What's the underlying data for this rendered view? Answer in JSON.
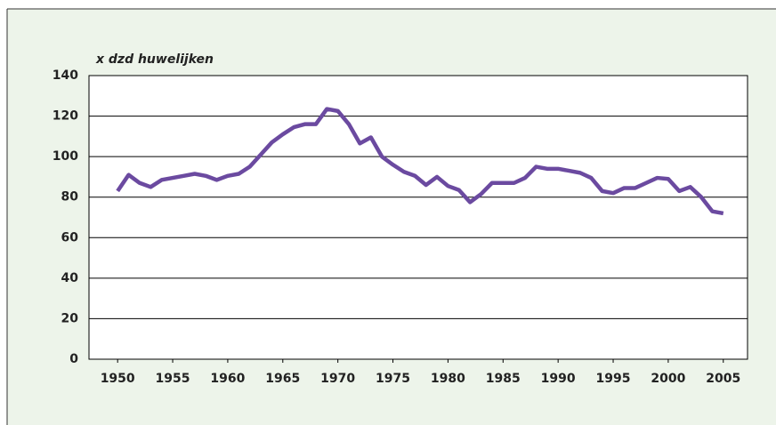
{
  "chart_data": {
    "type": "line",
    "y_label": "x dzd huwelijken",
    "x": [
      1950,
      1951,
      1952,
      1953,
      1954,
      1955,
      1956,
      1957,
      1958,
      1959,
      1960,
      1961,
      1962,
      1963,
      1964,
      1965,
      1966,
      1967,
      1968,
      1969,
      1970,
      1971,
      1972,
      1973,
      1974,
      1975,
      1976,
      1977,
      1978,
      1979,
      1980,
      1981,
      1982,
      1983,
      1984,
      1985,
      1986,
      1987,
      1988,
      1989,
      1990,
      1991,
      1992,
      1993,
      1994,
      1995,
      1996,
      1997,
      1998,
      1999,
      2000,
      2001,
      2002,
      2003,
      2004,
      2005
    ],
    "series": [
      {
        "color": "#6b4aa0",
        "values": [
          83,
          91,
          87,
          85,
          88.5,
          89.5,
          90.5,
          91.5,
          90.5,
          88.5,
          90.5,
          91.5,
          95,
          101,
          107,
          111,
          114.5,
          116,
          116,
          123.5,
          122.5,
          116,
          106.5,
          109.5,
          100,
          96,
          92.5,
          90.5,
          86,
          90,
          85.5,
          83.5,
          77.5,
          81.5,
          87,
          87,
          87,
          89.5,
          95,
          94,
          94,
          93,
          92,
          89.5,
          83,
          82,
          84.5,
          84.5,
          87,
          89.5,
          89,
          83,
          85,
          80,
          73,
          72
        ]
      }
    ],
    "xlim": [
      1947.4,
      2007.2
    ],
    "xticks": [
      1950,
      1955,
      1960,
      1965,
      1970,
      1975,
      1980,
      1985,
      1990,
      1995,
      2000,
      2005
    ],
    "ylim": [
      0,
      140
    ],
    "yticks": [
      0,
      20,
      40,
      60,
      80,
      100,
      120,
      140
    ],
    "grid": true
  }
}
